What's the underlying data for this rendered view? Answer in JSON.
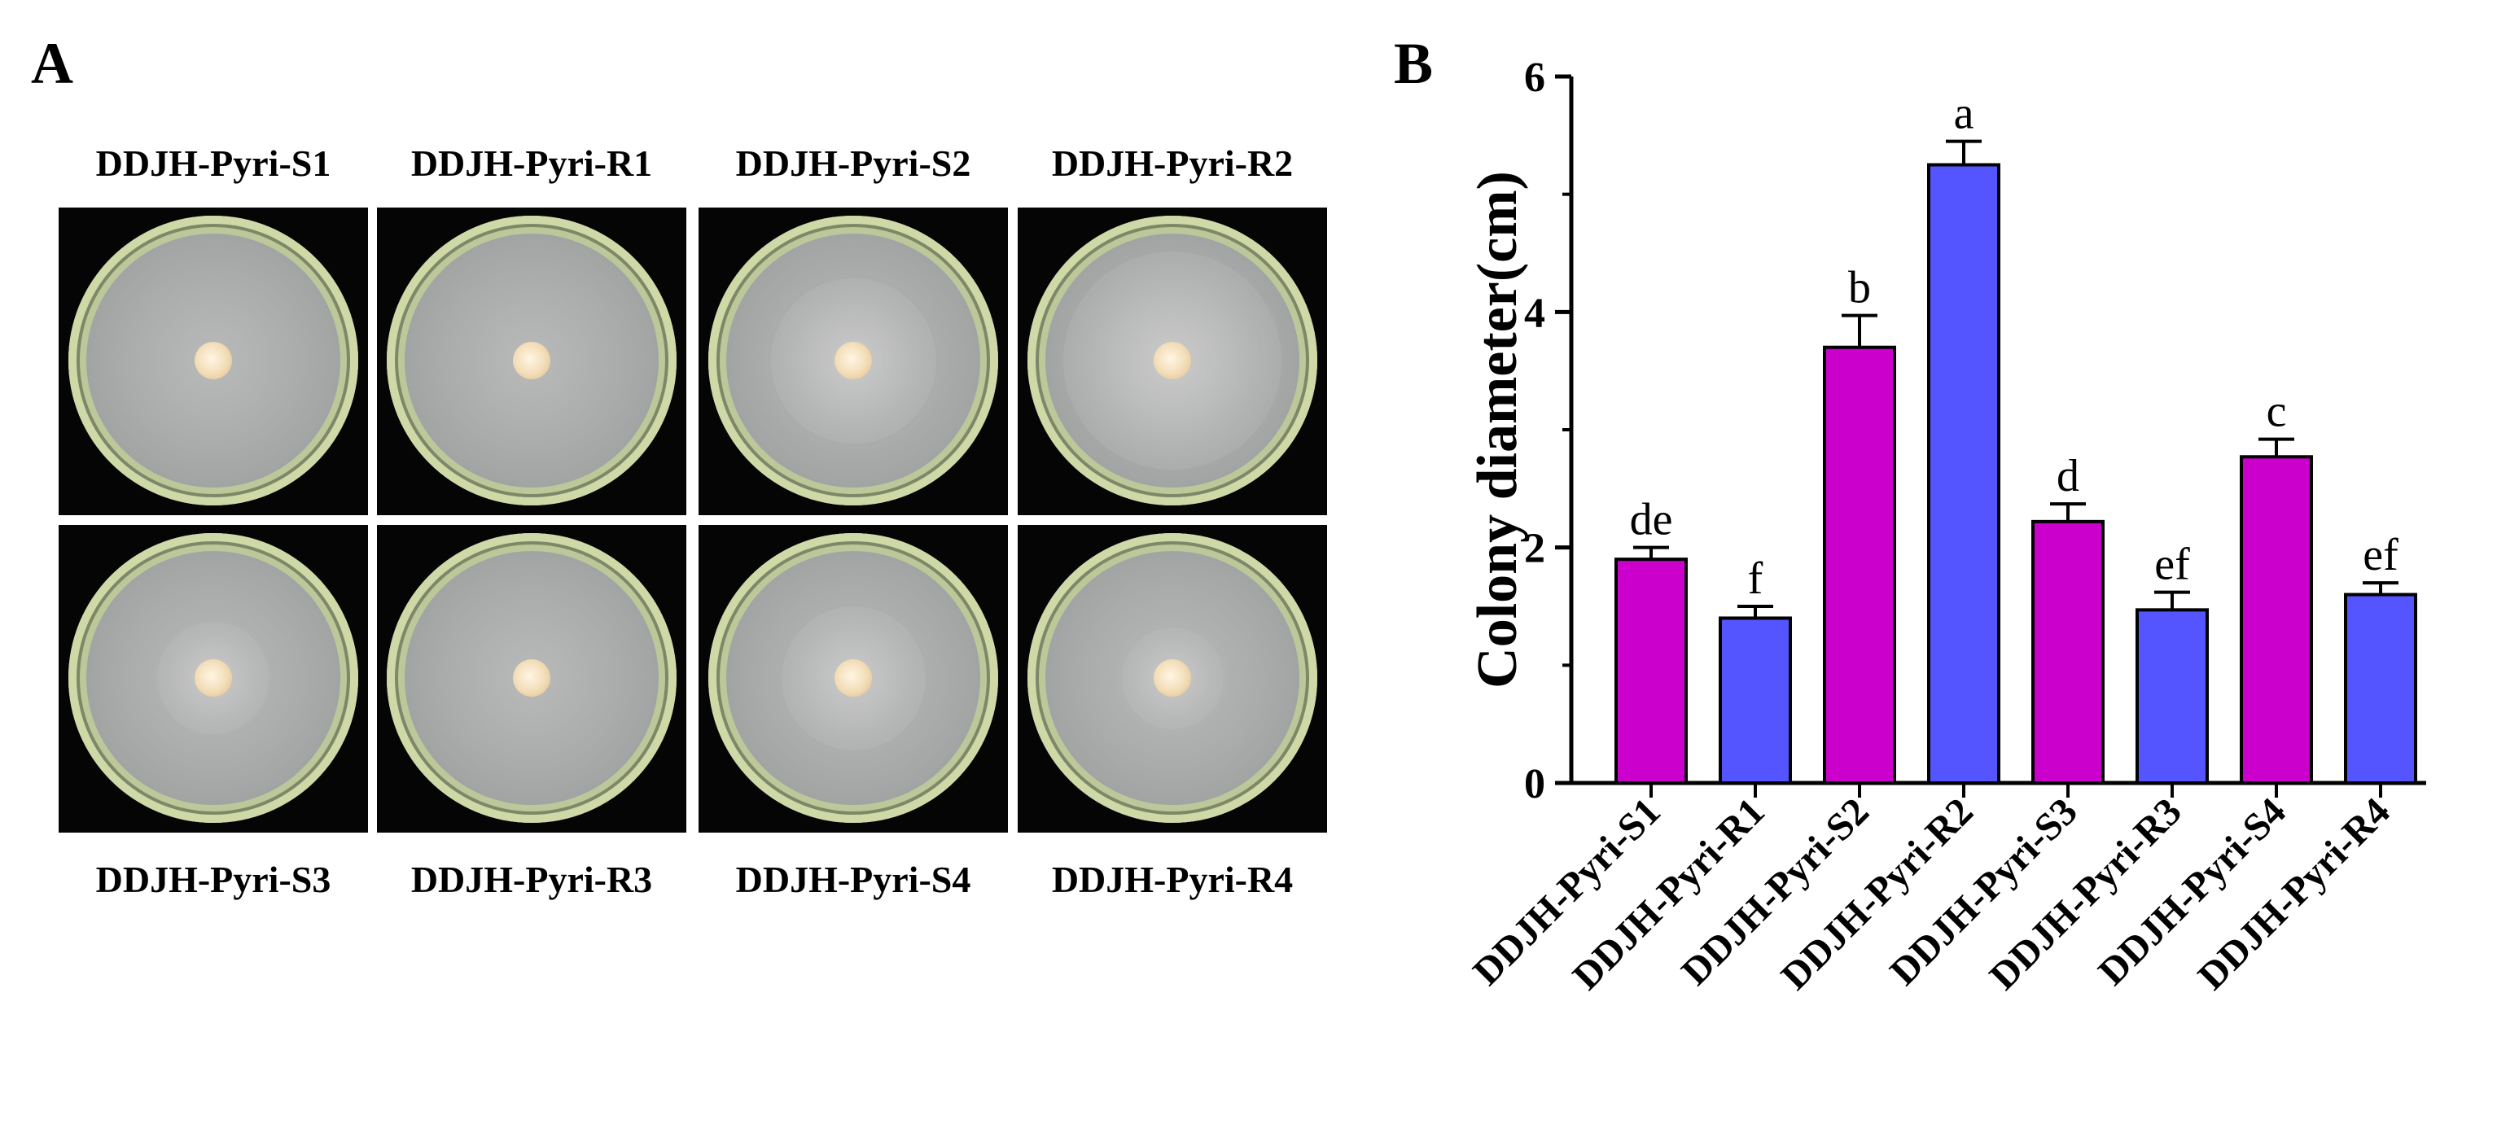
{
  "panel_a": {
    "letter": "A",
    "plates": [
      {
        "label": "DDJH-Pyri-S1",
        "halo": 0.0
      },
      {
        "label": "DDJH-Pyri-R1",
        "halo": 0.0
      },
      {
        "label": "DDJH-Pyri-S2",
        "halo": 0.55
      },
      {
        "label": "DDJH-Pyri-R2",
        "halo": 0.8
      },
      {
        "label": "DDJH-Pyri-S3",
        "halo": 0.3
      },
      {
        "label": "DDJH-Pyri-R3",
        "halo": 0.0
      },
      {
        "label": "DDJH-Pyri-S4",
        "halo": 0.45
      },
      {
        "label": "DDJH-Pyri-R4",
        "halo": 0.25
      }
    ]
  },
  "panel_b": {
    "letter": "B"
  },
  "chart_data": {
    "type": "bar",
    "title": "",
    "xlabel": "",
    "ylabel": "Colony diameter(cm)",
    "ylim": [
      0,
      6
    ],
    "yticks": [
      0,
      2,
      4,
      6
    ],
    "grid": false,
    "categories": [
      "DDJH-Pyri-S1",
      "DDJH-Pyri-R1",
      "DDJH-Pyri-S2",
      "DDJH-Pyri-R2",
      "DDJH-Pyri-S3",
      "DDJH-Pyri-R3",
      "DDJH-Pyri-S4",
      "DDJH-Pyri-R4"
    ],
    "values": [
      1.9,
      1.4,
      3.7,
      5.25,
      2.22,
      1.47,
      2.77,
      1.6
    ],
    "errors": [
      0.1,
      0.1,
      0.27,
      0.2,
      0.15,
      0.15,
      0.15,
      0.1
    ],
    "significance_labels": [
      "de",
      "f",
      "b",
      "a",
      "d",
      "ef",
      "c",
      "ef"
    ],
    "colors": [
      "#cc00cc",
      "#5555ff",
      "#cc00cc",
      "#5555ff",
      "#cc00cc",
      "#5555ff",
      "#cc00cc",
      "#5555ff"
    ]
  }
}
